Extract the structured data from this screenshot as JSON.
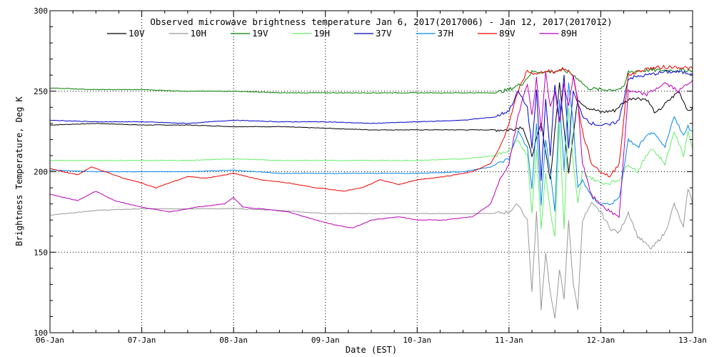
{
  "chart_data": {
    "type": "line",
    "title": "Observed microwave brightness temperature Jan  6, 2017(2017006) - Jan 12, 2017(2017012)",
    "xlabel": "Date (EST)",
    "ylabel": "Brightness Temperature, Deg K",
    "xlim": [
      0,
      7
    ],
    "ylim": [
      100,
      300
    ],
    "x_unit": "days since 06-Jan 00:00",
    "x_ticks": [
      {
        "value": 0,
        "label": "06-Jan"
      },
      {
        "value": 1,
        "label": "07-Jan"
      },
      {
        "value": 2,
        "label": "08-Jan"
      },
      {
        "value": 3,
        "label": "09-Jan"
      },
      {
        "value": 4,
        "label": "10-Jan"
      },
      {
        "value": 5,
        "label": "11-Jan"
      },
      {
        "value": 6,
        "label": "12-Jan"
      },
      {
        "value": 7,
        "label": "13-Jan"
      }
    ],
    "y_ticks": [
      {
        "value": 100,
        "label": "100"
      },
      {
        "value": 150,
        "label": "150"
      },
      {
        "value": 200,
        "label": "200"
      },
      {
        "value": 250,
        "label": "250"
      },
      {
        "value": 300,
        "label": "300"
      }
    ],
    "grid": {
      "style": "dotted",
      "x": true,
      "y": true
    },
    "legend_position": "top",
    "series": [
      {
        "name": "10V",
        "color": "#000000",
        "x": [
          0,
          0.5,
          1.0,
          1.5,
          2.0,
          2.5,
          3.0,
          3.5,
          4.0,
          4.5,
          4.85,
          5.0,
          5.15,
          5.25,
          5.35,
          5.45,
          5.55,
          5.65,
          5.75,
          5.85,
          6.0,
          6.15,
          6.25,
          6.35,
          6.5,
          6.6,
          6.7,
          6.85,
          6.95,
          7.0
        ],
        "y": [
          229,
          230,
          229,
          229,
          228,
          228,
          227,
          226,
          226,
          226,
          226,
          226,
          228,
          210,
          230,
          195,
          255,
          200,
          245,
          240,
          237,
          238,
          243,
          246,
          245,
          236,
          242,
          250,
          238,
          240
        ]
      },
      {
        "name": "10H",
        "color": "#999999",
        "x": [
          0,
          0.5,
          1.0,
          1.5,
          2.0,
          2.5,
          3.0,
          3.5,
          4.0,
          4.5,
          4.8,
          5.0,
          5.1,
          5.2,
          5.25,
          5.3,
          5.35,
          5.4,
          5.45,
          5.5,
          5.55,
          5.6,
          5.65,
          5.7,
          5.75,
          5.8,
          5.9,
          6.0,
          6.1,
          6.2,
          6.3,
          6.4,
          6.55,
          6.7,
          6.8,
          6.9,
          6.95,
          7.0
        ],
        "y": [
          173,
          176,
          177,
          177,
          177,
          176,
          174,
          174,
          174,
          174,
          174,
          175,
          180,
          170,
          125,
          175,
          115,
          150,
          125,
          108,
          140,
          120,
          170,
          130,
          115,
          170,
          180,
          175,
          165,
          162,
          175,
          160,
          152,
          162,
          180,
          165,
          190,
          180
        ]
      },
      {
        "name": "19V",
        "color": "#008000",
        "x": [
          0,
          0.5,
          1.0,
          1.5,
          2.0,
          2.5,
          3.0,
          3.5,
          4.0,
          4.5,
          4.85,
          5.0,
          5.15,
          5.25,
          5.35,
          5.45,
          5.55,
          5.65,
          5.75,
          5.85,
          6.0,
          6.15,
          6.25,
          6.3,
          6.5,
          6.7,
          6.85,
          7.0
        ],
        "y": [
          252,
          251,
          251,
          250,
          250,
          249,
          249,
          249,
          249,
          249,
          249,
          251,
          255,
          262,
          262,
          262,
          263,
          262,
          258,
          252,
          251,
          251,
          252,
          262,
          263,
          263,
          263,
          263
        ]
      },
      {
        "name": "19H",
        "color": "#66ee66",
        "x": [
          0,
          0.5,
          1.0,
          1.5,
          2.0,
          2.5,
          3.0,
          3.5,
          4.0,
          4.5,
          4.85,
          5.0,
          5.1,
          5.2,
          5.25,
          5.3,
          5.35,
          5.4,
          5.45,
          5.5,
          5.55,
          5.6,
          5.65,
          5.7,
          5.75,
          5.8,
          5.9,
          6.0,
          6.1,
          6.2,
          6.3,
          6.4,
          6.55,
          6.7,
          6.8,
          6.9,
          6.95,
          7.0
        ],
        "y": [
          207,
          207,
          207,
          207,
          208,
          207,
          207,
          207,
          207,
          208,
          210,
          213,
          220,
          210,
          175,
          215,
          165,
          200,
          175,
          160,
          230,
          165,
          240,
          205,
          180,
          200,
          196,
          193,
          193,
          195,
          205,
          200,
          215,
          205,
          225,
          210,
          225,
          215
        ]
      },
      {
        "name": "37V",
        "color": "#0000cc",
        "x": [
          0,
          0.5,
          1.0,
          1.5,
          2.0,
          2.5,
          3.0,
          3.5,
          4.0,
          4.5,
          4.85,
          5.0,
          5.1,
          5.2,
          5.25,
          5.3,
          5.35,
          5.4,
          5.45,
          5.5,
          5.55,
          5.6,
          5.65,
          5.7,
          5.75,
          5.8,
          5.9,
          6.0,
          6.1,
          6.2,
          6.3,
          6.5,
          6.7,
          6.85,
          7.0
        ],
        "y": [
          232,
          231,
          231,
          230,
          232,
          231,
          231,
          230,
          231,
          232,
          234,
          238,
          250,
          240,
          215,
          250,
          195,
          245,
          210,
          255,
          230,
          260,
          215,
          250,
          242,
          235,
          230,
          229,
          229,
          232,
          258,
          260,
          262,
          262,
          261
        ]
      },
      {
        "name": "37H",
        "color": "#0088ee",
        "x": [
          0,
          0.5,
          1.0,
          1.5,
          2.0,
          2.5,
          3.0,
          3.5,
          4.0,
          4.5,
          4.8,
          5.0,
          5.1,
          5.2,
          5.25,
          5.3,
          5.35,
          5.4,
          5.45,
          5.5,
          5.55,
          5.6,
          5.65,
          5.7,
          5.75,
          5.8,
          5.9,
          6.0,
          6.1,
          6.2,
          6.3,
          6.4,
          6.55,
          6.7,
          6.8,
          6.9,
          6.95,
          7.0
        ],
        "y": [
          201,
          200,
          200,
          200,
          201,
          199,
          199,
          199,
          199,
          200,
          203,
          208,
          225,
          215,
          190,
          230,
          180,
          220,
          200,
          175,
          245,
          200,
          255,
          230,
          190,
          195,
          184,
          180,
          180,
          183,
          220,
          215,
          225,
          215,
          235,
          222,
          228,
          225
        ]
      },
      {
        "name": "89V",
        "color": "#ee0000",
        "x": [
          0,
          0.3,
          0.45,
          0.6,
          0.8,
          1.0,
          1.15,
          1.3,
          1.5,
          1.7,
          2.0,
          2.3,
          2.6,
          2.9,
          3.2,
          3.4,
          3.6,
          3.8,
          4.0,
          4.3,
          4.6,
          4.8,
          4.9,
          5.0,
          5.1,
          5.2,
          5.3,
          5.4,
          5.5,
          5.6,
          5.7,
          5.8,
          5.9,
          6.0,
          6.1,
          6.2,
          6.3,
          6.5,
          6.7,
          6.85,
          7.0
        ],
        "y": [
          202,
          198,
          203,
          200,
          196,
          193,
          190,
          193,
          197,
          196,
          199,
          195,
          193,
          190,
          188,
          190,
          195,
          192,
          195,
          197,
          200,
          205,
          215,
          230,
          250,
          263,
          260,
          263,
          262,
          264,
          260,
          225,
          205,
          200,
          197,
          205,
          260,
          264,
          265,
          265,
          264
        ]
      },
      {
        "name": "89H",
        "color": "#bb00bb",
        "x": [
          0,
          0.3,
          0.5,
          0.7,
          1.0,
          1.3,
          1.6,
          1.9,
          2.0,
          2.1,
          2.3,
          2.6,
          2.9,
          3.1,
          3.3,
          3.5,
          3.8,
          4.0,
          4.3,
          4.6,
          4.8,
          4.9,
          5.0,
          5.1,
          5.2,
          5.25,
          5.3,
          5.35,
          5.4,
          5.45,
          5.5,
          5.55,
          5.6,
          5.65,
          5.7,
          5.75,
          5.8,
          5.9,
          6.0,
          6.1,
          6.2,
          6.3,
          6.5,
          6.7,
          6.85,
          7.0
        ],
        "y": [
          186,
          182,
          188,
          182,
          178,
          175,
          178,
          180,
          184,
          178,
          177,
          175,
          170,
          167,
          165,
          170,
          172,
          170,
          170,
          172,
          180,
          195,
          205,
          235,
          255,
          235,
          258,
          225,
          262,
          240,
          250,
          230,
          255,
          240,
          260,
          245,
          205,
          185,
          180,
          175,
          172,
          250,
          248,
          255,
          250,
          257
        ]
      }
    ]
  }
}
